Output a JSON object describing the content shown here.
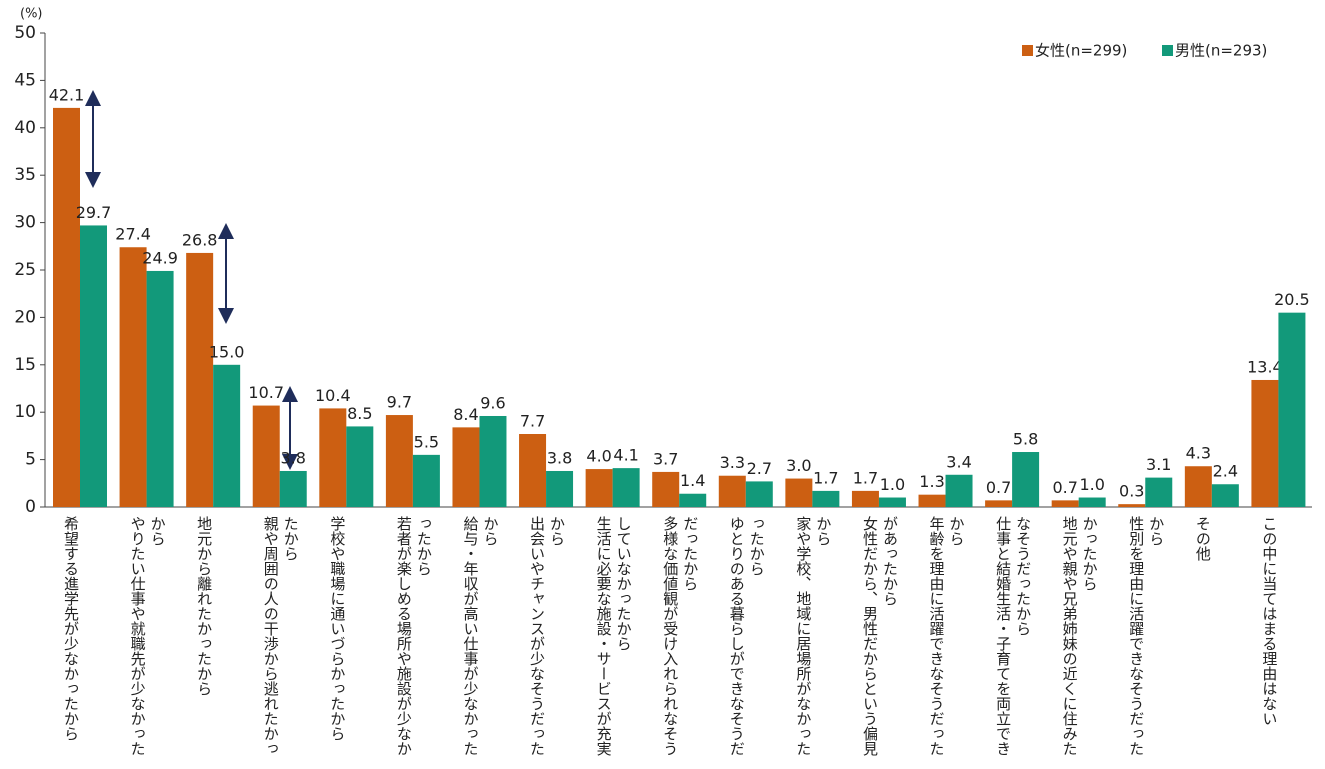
{
  "chart_data": {
    "type": "bar",
    "y_unit": "(%)",
    "categories": [
      "希望する進学先が少なかったから",
      "やりたい仕事や就職先が少なかったから",
      "地元から離れたかったから",
      "親や周囲の人の干渉から逃れたかったから",
      "学校や職場に通いづらかったから",
      "若者が楽しめる場所や施設が少なかったから",
      "給与・年収が高い仕事が少なかったから",
      "出会いやチャンスが少なそうだったから",
      "生活に必要な施設・サービスが充実していなかったから",
      "多様な価値観が受け入れられなそうだったから",
      "ゆとりのある暮らしができなそうだったから",
      "家や学校、地域に居場所がなかったから",
      "女性だから、男性だからという偏見があったから",
      "年齢を理由に活躍できなそうだったから",
      "仕事と結婚生活・子育てを両立できなそうだったから",
      "地元や親や兄弟姉妹の近くに住みたかったから",
      "性別を理由に活躍できなそうだったから",
      "その他",
      "この中に当てはまる理由はない"
    ],
    "series": [
      {
        "name": "女性(n=299)",
        "color": "#cc5f12",
        "values": [
          42.1,
          27.4,
          26.8,
          10.7,
          10.4,
          9.7,
          8.4,
          7.7,
          4.0,
          3.7,
          3.3,
          3.0,
          1.7,
          1.3,
          0.7,
          0.7,
          0.3,
          4.3,
          13.4
        ],
        "value_labels": [
          "42.1",
          "27.4",
          "26.8",
          "10.7",
          "10.4",
          "9.7",
          "8.4",
          "7.7",
          "4.0",
          "3.7",
          "3.3",
          "3.0",
          "1.7",
          "1.3",
          "0.7",
          "0.7",
          "0.3",
          "4.3",
          "13.4"
        ]
      },
      {
        "name": "男性(n=293)",
        "color": "#12997a",
        "values": [
          29.7,
          24.9,
          15.0,
          3.8,
          8.5,
          5.5,
          9.6,
          3.8,
          4.1,
          1.4,
          2.7,
          1.7,
          1.0,
          3.4,
          5.8,
          1.0,
          3.1,
          2.4,
          20.5
        ],
        "value_labels": [
          "29.7",
          "24.9",
          "15.0",
          "3.8",
          "8.5",
          "5.5",
          "9.6",
          "3.8",
          "4.1",
          "1.4",
          "2.7",
          "1.7",
          "1.0",
          "3.4",
          "5.8",
          "1.0",
          "3.1",
          "2.4",
          "20.5"
        ]
      }
    ],
    "ylim": [
      0,
      50
    ],
    "yticks": [
      0,
      5,
      10,
      15,
      20,
      25,
      30,
      35,
      40,
      45,
      50
    ],
    "legend": "top-right"
  }
}
